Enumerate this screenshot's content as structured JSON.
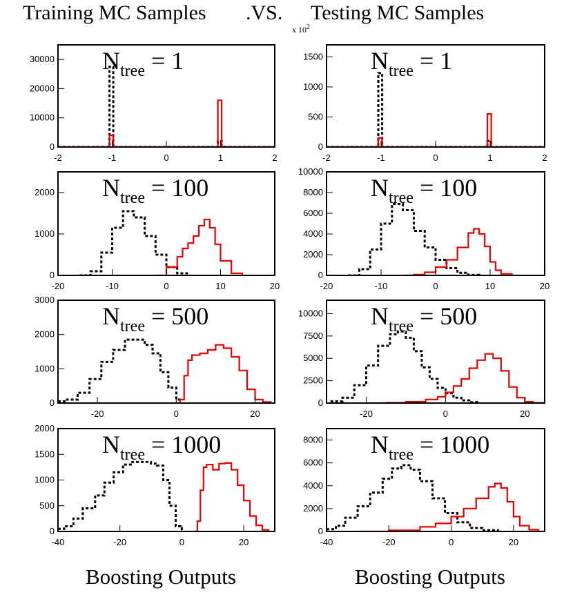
{
  "header": {
    "left_title": "Training MC Samples",
    "vs": ".VS.",
    "right_title": "Testing MC Samples",
    "multiplier": "x 10",
    "multiplier_exp": "2"
  },
  "footer": {
    "left_xlabel": "Boosting Outputs",
    "right_xlabel": "Boosting Outputs"
  },
  "colors": {
    "signal": "#e60000",
    "background": "#000000"
  },
  "chart_data": [
    {
      "type": "histogram",
      "label_main": "N",
      "label_sub": "tree",
      "label_value": "= 1",
      "xlim": [
        -2,
        2
      ],
      "ylim": [
        0,
        35000
      ],
      "xticks": [
        -2,
        -1,
        0,
        1,
        2
      ],
      "yticks": [
        0,
        10000,
        20000,
        30000
      ],
      "series": [
        {
          "style": "dashed-black",
          "points": [
            [
              -2,
              0
            ],
            [
              -1.05,
              0
            ],
            [
              -1.05,
              27500
            ],
            [
              -0.98,
              27500
            ],
            [
              -0.98,
              0
            ],
            [
              0.95,
              0
            ],
            [
              0.95,
              2000
            ],
            [
              1.02,
              2000
            ],
            [
              1.02,
              0
            ],
            [
              2,
              0
            ]
          ]
        },
        {
          "style": "solid-red",
          "points": [
            [
              -2,
              0
            ],
            [
              -1.05,
              0
            ],
            [
              -1.05,
              4000
            ],
            [
              -0.98,
              4000
            ],
            [
              -0.98,
              0
            ],
            [
              0.95,
              0
            ],
            [
              0.95,
              16000
            ],
            [
              1.02,
              16000
            ],
            [
              1.02,
              0
            ],
            [
              2,
              0
            ]
          ]
        }
      ]
    },
    {
      "type": "histogram",
      "label_main": "N",
      "label_sub": "tree",
      "label_value": "= 1",
      "xlim": [
        -2,
        2
      ],
      "ylim": [
        0,
        1700
      ],
      "xticks": [
        -2,
        -1,
        0,
        1,
        2
      ],
      "yticks": [
        0,
        500,
        1000,
        1500
      ],
      "series": [
        {
          "style": "dashed-black",
          "points": [
            [
              -2,
              0
            ],
            [
              -1.05,
              0
            ],
            [
              -1.05,
              1230
            ],
            [
              -0.98,
              1230
            ],
            [
              -0.98,
              0
            ],
            [
              0.95,
              0
            ],
            [
              0.95,
              100
            ],
            [
              1.02,
              100
            ],
            [
              1.02,
              0
            ],
            [
              2,
              0
            ]
          ]
        },
        {
          "style": "solid-red",
          "points": [
            [
              -2,
              0
            ],
            [
              -1.05,
              0
            ],
            [
              -1.05,
              150
            ],
            [
              -0.98,
              150
            ],
            [
              -0.98,
              0
            ],
            [
              0.95,
              0
            ],
            [
              0.95,
              550
            ],
            [
              1.02,
              550
            ],
            [
              1.02,
              0
            ],
            [
              2,
              0
            ]
          ]
        }
      ]
    },
    {
      "type": "histogram",
      "label_main": "N",
      "label_sub": "tree",
      "label_value": "= 100",
      "xlim": [
        -20,
        20
      ],
      "ylim": [
        0,
        2500
      ],
      "xticks": [
        -20,
        -10,
        0,
        10,
        20
      ],
      "yticks": [
        0,
        1000,
        2000
      ],
      "series": [
        {
          "style": "dashed-black",
          "points": [
            [
              -16,
              0
            ],
            [
              -14,
              100
            ],
            [
              -12,
              550
            ],
            [
              -10,
              1150
            ],
            [
              -8,
              1550
            ],
            [
              -6,
              1400
            ],
            [
              -4,
              950
            ],
            [
              -2,
              500
            ],
            [
              0,
              200
            ],
            [
              2,
              50
            ],
            [
              4,
              0
            ]
          ]
        },
        {
          "style": "solid-red",
          "points": [
            [
              -2,
              0
            ],
            [
              0,
              200
            ],
            [
              2,
              450
            ],
            [
              3,
              650
            ],
            [
              4,
              780
            ],
            [
              5,
              950
            ],
            [
              6,
              1200
            ],
            [
              7,
              1350
            ],
            [
              8,
              1150
            ],
            [
              9,
              750
            ],
            [
              10,
              350
            ],
            [
              12,
              50
            ],
            [
              14,
              0
            ]
          ]
        }
      ]
    },
    {
      "type": "histogram",
      "label_main": "N",
      "label_sub": "tree",
      "label_value": "= 100",
      "xlim": [
        -20,
        20
      ],
      "ylim": [
        0,
        10000
      ],
      "xticks": [
        -20,
        -10,
        0,
        10,
        20
      ],
      "yticks": [
        0,
        2000,
        4000,
        6000,
        8000,
        10000
      ],
      "series": [
        {
          "style": "dashed-black",
          "points": [
            [
              -16,
              0
            ],
            [
              -14,
              600
            ],
            [
              -12,
              2500
            ],
            [
              -10,
              5000
            ],
            [
              -8,
              6900
            ],
            [
              -6,
              6300
            ],
            [
              -4,
              4300
            ],
            [
              -2,
              2700
            ],
            [
              0,
              1500
            ],
            [
              2,
              700
            ],
            [
              4,
              250
            ],
            [
              6,
              50
            ],
            [
              8,
              0
            ]
          ]
        },
        {
          "style": "solid-red",
          "points": [
            [
              -6,
              0
            ],
            [
              -4,
              80
            ],
            [
              -2,
              300
            ],
            [
              0,
              800
            ],
            [
              2,
              1500
            ],
            [
              4,
              2700
            ],
            [
              6,
              4100
            ],
            [
              7,
              4500
            ],
            [
              8,
              4000
            ],
            [
              9,
              2800
            ],
            [
              10,
              1300
            ],
            [
              11,
              500
            ],
            [
              12,
              150
            ],
            [
              14,
              0
            ]
          ]
        }
      ]
    },
    {
      "type": "histogram",
      "label_main": "N",
      "label_sub": "tree",
      "label_value": "= 500",
      "xlim": [
        -30,
        25
      ],
      "ylim": [
        0,
        3000
      ],
      "xticks": [
        -20,
        0,
        20
      ],
      "yticks": [
        0,
        1000,
        2000,
        3000
      ],
      "series": [
        {
          "style": "dashed-black",
          "points": [
            [
              -30,
              50
            ],
            [
              -28,
              100
            ],
            [
              -25,
              300
            ],
            [
              -22,
              700
            ],
            [
              -19,
              1200
            ],
            [
              -16,
              1550
            ],
            [
              -13,
              1850
            ],
            [
              -10,
              1850
            ],
            [
              -8,
              1700
            ],
            [
              -6,
              1450
            ],
            [
              -4,
              900
            ],
            [
              -2,
              450
            ],
            [
              0,
              100
            ],
            [
              1,
              0
            ]
          ]
        },
        {
          "style": "solid-red",
          "points": [
            [
              0,
              0
            ],
            [
              1,
              100
            ],
            [
              2,
              800
            ],
            [
              3,
              1250
            ],
            [
              4,
              1400
            ],
            [
              6,
              1450
            ],
            [
              8,
              1550
            ],
            [
              10,
              1700
            ],
            [
              12,
              1600
            ],
            [
              14,
              1350
            ],
            [
              16,
              950
            ],
            [
              18,
              400
            ],
            [
              20,
              100
            ],
            [
              22,
              30
            ],
            [
              24,
              0
            ]
          ]
        }
      ]
    },
    {
      "type": "histogram",
      "label_main": "N",
      "label_sub": "tree",
      "label_value": "= 500",
      "xlim": [
        -30,
        25
      ],
      "ylim": [
        0,
        11500
      ],
      "xticks": [
        -20,
        0,
        20
      ],
      "yticks": [
        0,
        2500,
        5000,
        7500,
        10000
      ],
      "series": [
        {
          "style": "dashed-black",
          "points": [
            [
              -29,
              200
            ],
            [
              -26,
              600
            ],
            [
              -23,
              2000
            ],
            [
              -20,
              4200
            ],
            [
              -17,
              6400
            ],
            [
              -14,
              7700
            ],
            [
              -12,
              8000
            ],
            [
              -10,
              7300
            ],
            [
              -8,
              5800
            ],
            [
              -6,
              4000
            ],
            [
              -4,
              2700
            ],
            [
              -2,
              1700
            ],
            [
              0,
              1100
            ],
            [
              2,
              600
            ],
            [
              4,
              300
            ],
            [
              6,
              100
            ],
            [
              8,
              0
            ]
          ]
        },
        {
          "style": "solid-red",
          "points": [
            [
              -20,
              0
            ],
            [
              -15,
              40
            ],
            [
              -10,
              150
            ],
            [
              -5,
              400
            ],
            [
              -2,
              700
            ],
            [
              0,
              1200
            ],
            [
              2,
              1900
            ],
            [
              4,
              2700
            ],
            [
              6,
              3900
            ],
            [
              8,
              4800
            ],
            [
              10,
              5500
            ],
            [
              12,
              5000
            ],
            [
              14,
              3600
            ],
            [
              16,
              1800
            ],
            [
              18,
              600
            ],
            [
              20,
              150
            ],
            [
              22,
              30
            ],
            [
              25,
              0
            ]
          ]
        }
      ]
    },
    {
      "type": "histogram",
      "label_main": "N",
      "label_sub": "tree",
      "label_value": "= 1000",
      "xlim": [
        -40,
        30
      ],
      "ylim": [
        0,
        2000
      ],
      "xticks": [
        -40,
        -20,
        0,
        20
      ],
      "yticks": [
        0,
        500,
        1000,
        1500,
        2000
      ],
      "series": [
        {
          "style": "dashed-black",
          "points": [
            [
              -40,
              50
            ],
            [
              -38,
              100
            ],
            [
              -35,
              250
            ],
            [
              -32,
              450
            ],
            [
              -28,
              700
            ],
            [
              -25,
              950
            ],
            [
              -22,
              1150
            ],
            [
              -19,
              1300
            ],
            [
              -16,
              1350
            ],
            [
              -13,
              1350
            ],
            [
              -10,
              1320
            ],
            [
              -8,
              1280
            ],
            [
              -6,
              1000
            ],
            [
              -4,
              500
            ],
            [
              -2,
              100
            ],
            [
              0,
              0
            ]
          ]
        },
        {
          "style": "solid-red",
          "points": [
            [
              4,
              0
            ],
            [
              5,
              200
            ],
            [
              6,
              800
            ],
            [
              7,
              1250
            ],
            [
              8,
              1300
            ],
            [
              10,
              1200
            ],
            [
              12,
              1320
            ],
            [
              14,
              1330
            ],
            [
              16,
              1200
            ],
            [
              18,
              900
            ],
            [
              20,
              600
            ],
            [
              22,
              300
            ],
            [
              24,
              120
            ],
            [
              26,
              30
            ],
            [
              28,
              0
            ]
          ]
        }
      ]
    },
    {
      "type": "histogram",
      "label_main": "N",
      "label_sub": "tree",
      "label_value": "= 1000",
      "xlim": [
        -40,
        30
      ],
      "ylim": [
        0,
        9000
      ],
      "xticks": [
        -40,
        -20,
        0,
        20
      ],
      "yticks": [
        0,
        2000,
        4000,
        6000,
        8000
      ],
      "series": [
        {
          "style": "dashed-black",
          "points": [
            [
              -40,
              200
            ],
            [
              -37,
              500
            ],
            [
              -34,
              1200
            ],
            [
              -30,
              2200
            ],
            [
              -26,
              3400
            ],
            [
              -22,
              4600
            ],
            [
              -19,
              5500
            ],
            [
              -16,
              5800
            ],
            [
              -13,
              5400
            ],
            [
              -10,
              4400
            ],
            [
              -6,
              2900
            ],
            [
              -2,
              1600
            ],
            [
              2,
              800
            ],
            [
              6,
              300
            ],
            [
              10,
              100
            ],
            [
              15,
              0
            ]
          ]
        },
        {
          "style": "solid-red",
          "points": [
            [
              -30,
              0
            ],
            [
              -20,
              100
            ],
            [
              -10,
              400
            ],
            [
              -5,
              700
            ],
            [
              0,
              1300
            ],
            [
              4,
              2000
            ],
            [
              8,
              2900
            ],
            [
              12,
              3900
            ],
            [
              14,
              4200
            ],
            [
              16,
              3800
            ],
            [
              18,
              2600
            ],
            [
              20,
              1300
            ],
            [
              22,
              500
            ],
            [
              25,
              150
            ],
            [
              28,
              0
            ]
          ]
        }
      ]
    }
  ]
}
